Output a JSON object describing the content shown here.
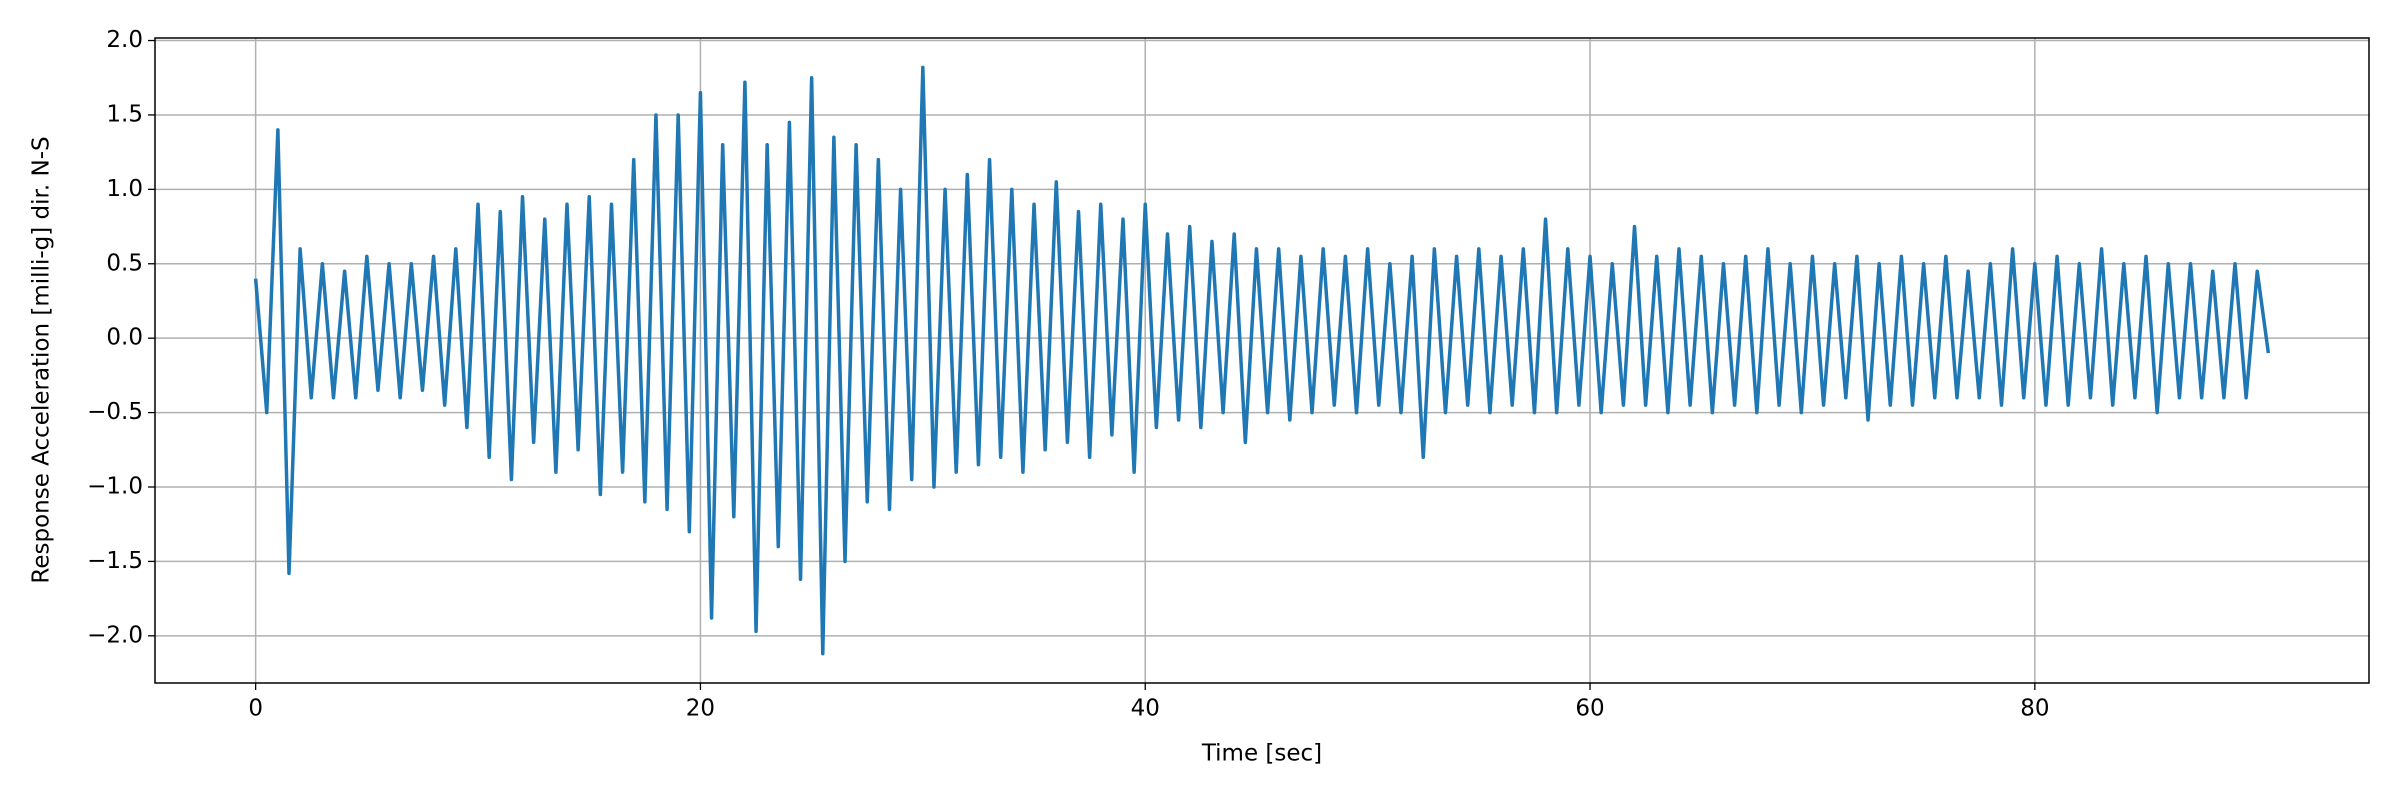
{
  "chart_data": {
    "type": "line",
    "xlabel": "Time [sec]",
    "ylabel": "Response Acceleration [milli-g] dir. N-S",
    "color": "#1f77b4",
    "grid": true,
    "xlim": [
      -4.525,
      95.025
    ],
    "ylim": [
      -2.317,
      2.017
    ],
    "xticks": [
      0,
      20,
      40,
      60,
      80
    ],
    "yticks": [
      {
        "value": -2,
        "label": "−2.0"
      },
      {
        "value": -1.5,
        "label": "−1.5"
      },
      {
        "value": -1,
        "label": "−1.0"
      },
      {
        "value": -0.5,
        "label": "−0.5"
      },
      {
        "value": 0,
        "label": "0.0"
      },
      0.5,
      {
        "value": 1,
        "label": "1.0"
      },
      1.5,
      {
        "value": 2,
        "label": "2.0"
      }
    ],
    "x": [
      0,
      0.5,
      1,
      1.5,
      2,
      2.5,
      3,
      3.5,
      4,
      4.5,
      5,
      5.5,
      6,
      6.5,
      7,
      7.5,
      8,
      8.5,
      9,
      9.5,
      10,
      10.5,
      11,
      11.5,
      12,
      12.5,
      13,
      13.5,
      14,
      14.5,
      15,
      15.5,
      16,
      16.5,
      17,
      17.5,
      18,
      18.5,
      19,
      19.5,
      20,
      20.5,
      21,
      21.5,
      22,
      22.5,
      23,
      23.5,
      24,
      24.5,
      25,
      25.5,
      26,
      26.5,
      27,
      27.5,
      28,
      28.5,
      29,
      29.5,
      30,
      30.5,
      31,
      31.5,
      32,
      32.5,
      33,
      33.5,
      34,
      34.5,
      35,
      35.5,
      36,
      36.5,
      37,
      37.5,
      38,
      38.5,
      39,
      39.5,
      40,
      40.5,
      41,
      41.5,
      42,
      42.5,
      43,
      43.5,
      44,
      44.5,
      45,
      45.5,
      46,
      46.5,
      47,
      47.5,
      48,
      48.5,
      49,
      49.5,
      50,
      50.5,
      51,
      51.5,
      52,
      52.5,
      53,
      53.5,
      54,
      54.5,
      55,
      55.5,
      56,
      56.5,
      57,
      57.5,
      58,
      58.5,
      59,
      59.5,
      60,
      60.5,
      61,
      61.5,
      62,
      62.5,
      63,
      63.5,
      64,
      64.5,
      65,
      65.5,
      66,
      66.5,
      67,
      67.5,
      68,
      68.5,
      69,
      69.5,
      70,
      70.5,
      71,
      71.5,
      72,
      72.5,
      73,
      73.5,
      74,
      74.5,
      75,
      75.5,
      76,
      76.5,
      77,
      77.5,
      78,
      78.5,
      79,
      79.5,
      80,
      80.5,
      81,
      81.5,
      82,
      82.5,
      83,
      83.5,
      84,
      84.5,
      85,
      85.5,
      86,
      86.5,
      87,
      87.5,
      88,
      88.5,
      89,
      89.5,
      90,
      90.5
    ],
    "values": [
      0.4,
      -0.5,
      1.4,
      -1.58,
      0.6,
      -0.4,
      0.5,
      -0.4,
      0.45,
      -0.4,
      0.55,
      -0.35,
      0.5,
      -0.4,
      0.5,
      -0.35,
      0.55,
      -0.45,
      0.6,
      -0.6,
      0.9,
      -0.8,
      0.85,
      -0.95,
      0.95,
      -0.7,
      0.8,
      -0.9,
      0.9,
      -0.75,
      0.95,
      -1.05,
      0.9,
      -0.9,
      1.2,
      -1.1,
      1.5,
      -1.15,
      1.5,
      -1.3,
      1.65,
      -1.88,
      1.3,
      -1.2,
      1.72,
      -1.97,
      1.3,
      -1.4,
      1.45,
      -1.62,
      1.75,
      -2.12,
      1.35,
      -1.5,
      1.3,
      -1.1,
      1.2,
      -1.15,
      1.0,
      -0.95,
      1.82,
      -1.0,
      1.0,
      -0.9,
      1.1,
      -0.85,
      1.2,
      -0.8,
      1.0,
      -0.9,
      0.9,
      -0.75,
      1.05,
      -0.7,
      0.85,
      -0.8,
      0.9,
      -0.65,
      0.8,
      -0.9,
      0.9,
      -0.6,
      0.7,
      -0.55,
      0.75,
      -0.6,
      0.65,
      -0.5,
      0.7,
      -0.7,
      0.6,
      -0.5,
      0.6,
      -0.55,
      0.55,
      -0.5,
      0.6,
      -0.45,
      0.55,
      -0.5,
      0.6,
      -0.45,
      0.5,
      -0.5,
      0.55,
      -0.8,
      0.6,
      -0.5,
      0.55,
      -0.45,
      0.6,
      -0.5,
      0.55,
      -0.45,
      0.6,
      -0.5,
      0.8,
      -0.5,
      0.6,
      -0.45,
      0.55,
      -0.5,
      0.5,
      -0.45,
      0.75,
      -0.45,
      0.55,
      -0.5,
      0.6,
      -0.45,
      0.55,
      -0.5,
      0.5,
      -0.45,
      0.55,
      -0.5,
      0.6,
      -0.45,
      0.5,
      -0.5,
      0.55,
      -0.45,
      0.5,
      -0.4,
      0.55,
      -0.55,
      0.5,
      -0.45,
      0.55,
      -0.45,
      0.5,
      -0.4,
      0.55,
      -0.4,
      0.45,
      -0.4,
      0.5,
      -0.45,
      0.6,
      -0.4,
      0.5,
      -0.45,
      0.55,
      -0.45,
      0.5,
      -0.4,
      0.6,
      -0.45,
      0.5,
      -0.4,
      0.55,
      -0.5,
      0.5,
      -0.4,
      0.5,
      -0.4,
      0.45,
      -0.4,
      0.5,
      -0.4,
      0.45,
      -0.1
    ]
  }
}
